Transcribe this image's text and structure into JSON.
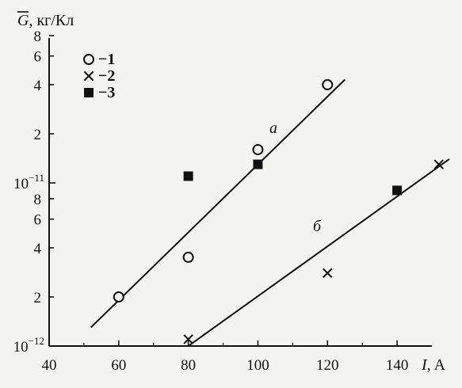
{
  "chart_data": {
    "type": "scatter",
    "title": "",
    "ylabel_symbol": "G",
    "ylabel_unit": ", кг/Кл",
    "xlabel_symbol": "I",
    "xlabel_unit": ", A",
    "x_scale": "linear",
    "y_scale": "log",
    "xlim": [
      40,
      150
    ],
    "ylim": [
      1e-12,
      1e-10
    ],
    "x_ticks": [
      40,
      60,
      80,
      100,
      120,
      140
    ],
    "x_tick_labels": [
      "40",
      "60",
      "80",
      "100",
      "120",
      "140"
    ],
    "y_ticks": [
      {
        "value": 1e-12,
        "mantissa": "10",
        "exponent": "−12"
      },
      {
        "value": 2e-12,
        "label": "2"
      },
      {
        "value": 4e-12,
        "label": "4"
      },
      {
        "value": 6e-12,
        "label": "6"
      },
      {
        "value": 8e-12,
        "label": "8"
      },
      {
        "value": 1e-11,
        "mantissa": "10",
        "exponent": "−11"
      },
      {
        "value": 2e-11,
        "label": "2"
      },
      {
        "value": 4e-11,
        "label": "4"
      },
      {
        "value": 6e-11,
        "label": "6"
      },
      {
        "value": 8e-11,
        "label": "8"
      }
    ],
    "grid": false,
    "legend_position": "top-left",
    "series": [
      {
        "name": "1",
        "marker": "open-circle",
        "points": [
          [
            60,
            2e-12
          ],
          [
            80,
            3.5e-12
          ],
          [
            100,
            1.6e-11
          ],
          [
            120,
            4e-11
          ]
        ]
      },
      {
        "name": "2",
        "marker": "cross",
        "points": [
          [
            80,
            1.1e-12
          ],
          [
            120,
            2.8e-12
          ],
          [
            152,
            1.3e-11
          ]
        ]
      },
      {
        "name": "3",
        "marker": "filled-square",
        "points": [
          [
            80,
            1.1e-11
          ],
          [
            100,
            1.3e-11
          ],
          [
            140,
            9e-12
          ]
        ]
      }
    ],
    "lines": [
      {
        "label": "а",
        "from": [
          52,
          1.3e-12
        ],
        "to": [
          125,
          4.3e-11
        ]
      },
      {
        "label": "б",
        "from": [
          80,
          1e-12
        ],
        "to": [
          155,
          1.4e-11
        ]
      }
    ]
  }
}
